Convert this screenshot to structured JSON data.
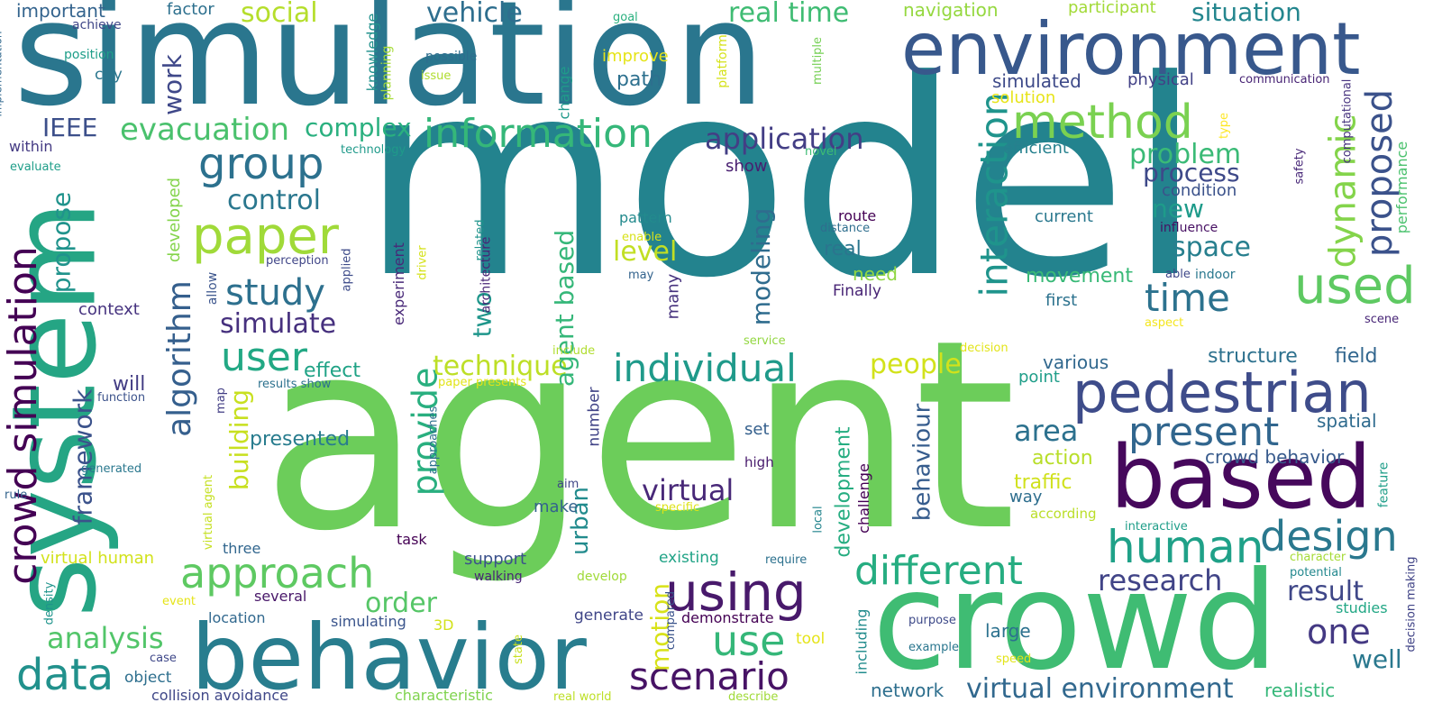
{
  "words": [
    {
      "text": "model",
      "color": "#23838e"
    },
    {
      "text": "agent",
      "color": "#6ccd5a"
    },
    {
      "text": "simulation",
      "color": "#2a768e"
    },
    {
      "text": "system",
      "color": "#25a584"
    },
    {
      "text": "crowd",
      "color": "#3fbc73"
    },
    {
      "text": "environment",
      "color": "#38588c"
    },
    {
      "text": "based",
      "color": "#46085c"
    },
    {
      "text": "behavior",
      "color": "#287d8e"
    },
    {
      "text": "pedestrian",
      "color": "#3e4c8a"
    },
    {
      "text": "method",
      "color": "#7ad151"
    },
    {
      "text": "human",
      "color": "#1fa188"
    },
    {
      "text": "using",
      "color": "#48196b"
    },
    {
      "text": "information",
      "color": "#35b779"
    },
    {
      "text": "paper",
      "color": "#a0da39"
    },
    {
      "text": "approach",
      "color": "#5ec962"
    },
    {
      "text": "different",
      "color": "#26ad81"
    },
    {
      "text": "individual",
      "color": "#1f9a8a"
    },
    {
      "text": "crowd simulation",
      "color": "#440154"
    },
    {
      "text": "scenario",
      "color": "#471365"
    },
    {
      "text": "used",
      "color": "#5ec962"
    },
    {
      "text": "design",
      "color": "#2a788e"
    },
    {
      "text": "present",
      "color": "#31668e"
    },
    {
      "text": "group",
      "color": "#2c718e"
    },
    {
      "text": "interaction",
      "color": "#1f948c"
    },
    {
      "text": "data",
      "color": "#21918c"
    },
    {
      "text": "dynamic",
      "color": "#84d44b"
    },
    {
      "text": "proposed",
      "color": "#3b528b"
    },
    {
      "text": "time",
      "color": "#2c728e"
    },
    {
      "text": "use",
      "color": "#35b779"
    },
    {
      "text": "user",
      "color": "#22a884"
    },
    {
      "text": "study",
      "color": "#2d708e"
    },
    {
      "text": "application",
      "color": "#433e85"
    },
    {
      "text": "algorithm",
      "color": "#355f8d"
    },
    {
      "text": "evacuation",
      "color": "#4ac16d"
    },
    {
      "text": "virtual",
      "color": "#482878"
    },
    {
      "text": "virtual environment",
      "color": "#31688e"
    },
    {
      "text": "research",
      "color": "#414487"
    },
    {
      "text": "one",
      "color": "#443983"
    },
    {
      "text": "result",
      "color": "#3f4788"
    },
    {
      "text": "provide",
      "color": "#29af7f"
    },
    {
      "text": "social",
      "color": "#b5de2b"
    },
    {
      "text": "real time",
      "color": "#3fbc73"
    },
    {
      "text": "vehicle",
      "color": "#2e6e8e"
    },
    {
      "text": "situation",
      "color": "#24868e"
    },
    {
      "text": "simulate",
      "color": "#46307e"
    },
    {
      "text": "control",
      "color": "#2a778e"
    },
    {
      "text": "complex",
      "color": "#2ab07f"
    },
    {
      "text": "IEEE",
      "color": "#3c4f8a"
    },
    {
      "text": "work",
      "color": "#3f4889"
    },
    {
      "text": "analysis",
      "color": "#52c569"
    },
    {
      "text": "framework",
      "color": "#3b528b"
    },
    {
      "text": "propose",
      "color": "#20938c"
    },
    {
      "text": "space",
      "color": "#277f8e"
    },
    {
      "text": "new",
      "color": "#1e9b8a"
    },
    {
      "text": "problem",
      "color": "#3aba76"
    },
    {
      "text": "process",
      "color": "#3e4989"
    },
    {
      "text": "area",
      "color": "#2c718e"
    },
    {
      "text": "people",
      "color": "#d2e21b"
    },
    {
      "text": "technique",
      "color": "#bddf26"
    },
    {
      "text": "building",
      "color": "#c8e020"
    },
    {
      "text": "modeling",
      "color": "#2f6c8e"
    },
    {
      "text": "order",
      "color": "#56c667"
    },
    {
      "text": "motion",
      "color": "#d8e219"
    },
    {
      "text": "agent based",
      "color": "#35b779"
    },
    {
      "text": "behaviour",
      "color": "#365c8d"
    },
    {
      "text": "level",
      "color": "#c2df23"
    },
    {
      "text": "two",
      "color": "#1f968b"
    },
    {
      "text": "urban",
      "color": "#228b8d"
    },
    {
      "text": "well",
      "color": "#2a788e"
    },
    {
      "text": "movement",
      "color": "#38b977"
    },
    {
      "text": "structure",
      "color": "#2d718e"
    },
    {
      "text": "field",
      "color": "#31668e"
    },
    {
      "text": "spatial",
      "color": "#2f6b8e"
    },
    {
      "text": "crowd behavior",
      "color": "#375a8c"
    },
    {
      "text": "traffic",
      "color": "#d0e11c"
    },
    {
      "text": "action",
      "color": "#b8de29"
    },
    {
      "text": "development",
      "color": "#26ad81"
    },
    {
      "text": "presented",
      "color": "#287c8e"
    },
    {
      "text": "effect",
      "color": "#20a386"
    },
    {
      "text": "will",
      "color": "#433d84"
    },
    {
      "text": "important",
      "color": "#33638d"
    },
    {
      "text": "factor",
      "color": "#2d708e"
    },
    {
      "text": "navigation",
      "color": "#95d840"
    },
    {
      "text": "participant",
      "color": "#a2da37"
    },
    {
      "text": "simulated",
      "color": "#3e4a89"
    },
    {
      "text": "solution",
      "color": "#e7e419"
    },
    {
      "text": "physical",
      "color": "#424186"
    },
    {
      "text": "efficient",
      "color": "#26818e"
    },
    {
      "text": "condition",
      "color": "#3b528b"
    },
    {
      "text": "current",
      "color": "#2a788e"
    },
    {
      "text": "first",
      "color": "#2c728e"
    },
    {
      "text": "various",
      "color": "#31688e"
    },
    {
      "text": "point",
      "color": "#1f9e89"
    },
    {
      "text": "set",
      "color": "#35608d"
    },
    {
      "text": "high",
      "color": "#481b6d"
    },
    {
      "text": "network",
      "color": "#2e6f8e"
    },
    {
      "text": "large",
      "color": "#2c718e"
    },
    {
      "text": "way",
      "color": "#2e6e8e"
    },
    {
      "text": "according",
      "color": "#bade28"
    },
    {
      "text": "path",
      "color": "#2d708e"
    },
    {
      "text": "improve",
      "color": "#e5e419"
    },
    {
      "text": "possible",
      "color": "#2e6d8e"
    },
    {
      "text": "issue",
      "color": "#b0dd2f"
    },
    {
      "text": "city",
      "color": "#2a768e"
    },
    {
      "text": "position",
      "color": "#1f9e89"
    },
    {
      "text": "achieve",
      "color": "#3f4788"
    },
    {
      "text": "goal",
      "color": "#2ab07f"
    },
    {
      "text": "knowledge",
      "color": "#21918c"
    },
    {
      "text": "planning",
      "color": "#a5db36"
    },
    {
      "text": "platform",
      "color": "#d5e21a"
    },
    {
      "text": "change",
      "color": "#1f9a8a"
    },
    {
      "text": "multiple",
      "color": "#75d054"
    },
    {
      "text": "communication",
      "color": "#482475"
    },
    {
      "text": "computational",
      "color": "#46327e"
    },
    {
      "text": "type",
      "color": "#fde725"
    },
    {
      "text": "safety",
      "color": "#482878"
    },
    {
      "text": "performance",
      "color": "#4ac16d"
    },
    {
      "text": "technology",
      "color": "#1f9a8a"
    },
    {
      "text": "novel",
      "color": "#3dbc74"
    },
    {
      "text": "evaluate",
      "color": "#1f9e89"
    },
    {
      "text": "within",
      "color": "#443a83"
    },
    {
      "text": "implementation",
      "color": "#31688e"
    },
    {
      "text": "show",
      "color": "#481f70"
    },
    {
      "text": "pattern",
      "color": "#238a8d"
    },
    {
      "text": "enable",
      "color": "#d8e219"
    },
    {
      "text": "route",
      "color": "#440154"
    },
    {
      "text": "distance",
      "color": "#2e6e8e"
    },
    {
      "text": "related",
      "color": "#1f948c"
    },
    {
      "text": "driver",
      "color": "#d5e21a"
    },
    {
      "text": "experiment",
      "color": "#482878"
    },
    {
      "text": "architecture",
      "color": "#482576"
    },
    {
      "text": "applied",
      "color": "#3e4c8a"
    },
    {
      "text": "perception",
      "color": "#404688"
    },
    {
      "text": "allow",
      "color": "#3a548c"
    },
    {
      "text": "developed",
      "color": "#84d44b"
    },
    {
      "text": "context",
      "color": "#46337f"
    },
    {
      "text": "may",
      "color": "#33638d"
    },
    {
      "text": "many",
      "color": "#46327e"
    },
    {
      "text": "real",
      "color": "#2b758e"
    },
    {
      "text": "need",
      "color": "#90d743"
    },
    {
      "text": "Finally",
      "color": "#482475"
    },
    {
      "text": "influence",
      "color": "#471063"
    },
    {
      "text": "indoor",
      "color": "#2a788e"
    },
    {
      "text": "able",
      "color": "#3f4889"
    },
    {
      "text": "aspect",
      "color": "#f4e61e"
    },
    {
      "text": "scene",
      "color": "#482677"
    },
    {
      "text": "service",
      "color": "#93d741"
    },
    {
      "text": "decision",
      "color": "#e2e418"
    },
    {
      "text": "include",
      "color": "#b0dd2f"
    },
    {
      "text": "results show",
      "color": "#2c718e"
    },
    {
      "text": "paper presents",
      "color": "#e2e418"
    },
    {
      "text": "function",
      "color": "#3b528b"
    },
    {
      "text": "map",
      "color": "#433e85"
    },
    {
      "text": "approaches",
      "color": "#2d708e"
    },
    {
      "text": "number",
      "color": "#414487"
    },
    {
      "text": "generated",
      "color": "#2a788e"
    },
    {
      "text": "rule",
      "color": "#33638d"
    },
    {
      "text": "virtual human",
      "color": "#d2e21b"
    },
    {
      "text": "virtual agent",
      "color": "#c5e021"
    },
    {
      "text": "three",
      "color": "#31668e"
    },
    {
      "text": "aim",
      "color": "#404688"
    },
    {
      "text": "make",
      "color": "#33638d"
    },
    {
      "text": "specific",
      "color": "#dde318"
    },
    {
      "text": "local",
      "color": "#25858e"
    },
    {
      "text": "challenge",
      "color": "#440154"
    },
    {
      "text": "task",
      "color": "#440154"
    },
    {
      "text": "support",
      "color": "#3b518b"
    },
    {
      "text": "walking",
      "color": "#482575"
    },
    {
      "text": "develop",
      "color": "#a0da39"
    },
    {
      "text": "existing",
      "color": "#20a386"
    },
    {
      "text": "compared",
      "color": "#3a538b"
    },
    {
      "text": "require",
      "color": "#2c718e"
    },
    {
      "text": "character",
      "color": "#a5db36"
    },
    {
      "text": "potential",
      "color": "#23888e"
    },
    {
      "text": "interactive",
      "color": "#1f9e89"
    },
    {
      "text": "feature",
      "color": "#1f9e89"
    },
    {
      "text": "decision making",
      "color": "#414487"
    },
    {
      "text": "studies",
      "color": "#22a785"
    },
    {
      "text": "realistic",
      "color": "#35b779"
    },
    {
      "text": "density",
      "color": "#1f948c"
    },
    {
      "text": "event",
      "color": "#e5e419"
    },
    {
      "text": "location",
      "color": "#31688e"
    },
    {
      "text": "several",
      "color": "#481769"
    },
    {
      "text": "simulating",
      "color": "#3a548c"
    },
    {
      "text": "3D",
      "color": "#d2e21b"
    },
    {
      "text": "generate",
      "color": "#404688"
    },
    {
      "text": "demonstrate",
      "color": "#440154"
    },
    {
      "text": "tool",
      "color": "#e5e419"
    },
    {
      "text": "state",
      "color": "#c8e020"
    },
    {
      "text": "purpose",
      "color": "#3e4a89"
    },
    {
      "text": "example",
      "color": "#2a768e"
    },
    {
      "text": "speed",
      "color": "#e2e418"
    },
    {
      "text": "including",
      "color": "#228c8d"
    },
    {
      "text": "object",
      "color": "#2e6f8e"
    },
    {
      "text": "case",
      "color": "#3f4889"
    },
    {
      "text": "collision avoidance",
      "color": "#3f4788"
    },
    {
      "text": "characteristic",
      "color": "#7fd34e"
    },
    {
      "text": "real world",
      "color": "#bddf26"
    },
    {
      "text": "describe",
      "color": "#a0da39"
    }
  ]
}
